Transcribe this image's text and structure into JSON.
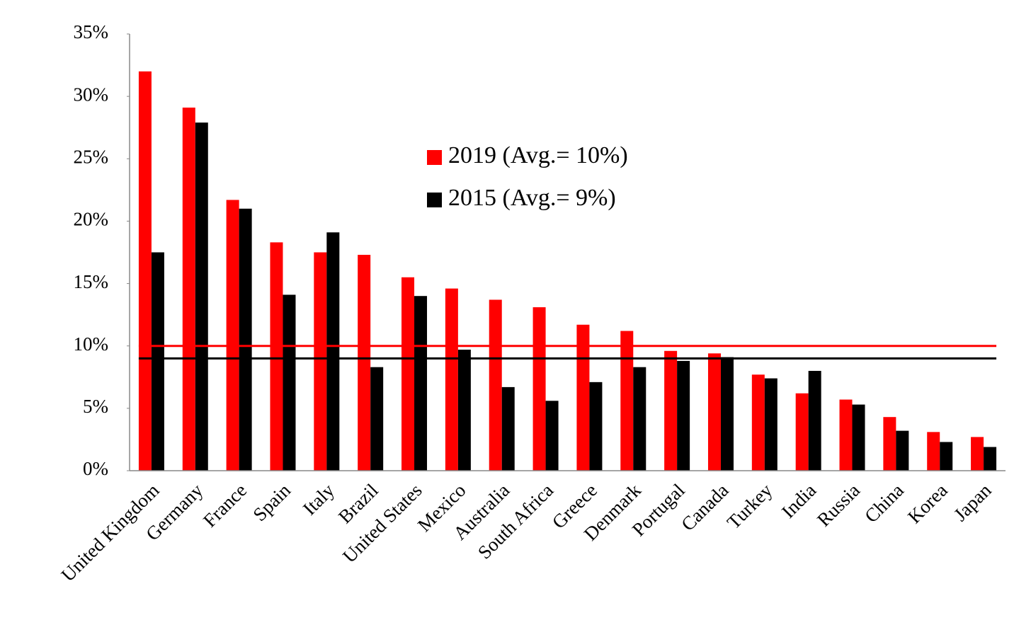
{
  "chart_data": {
    "type": "bar",
    "categories": [
      "United Kingdom",
      "Germany",
      "France",
      "Spain",
      "Italy",
      "Brazil",
      "United States",
      "Mexico",
      "Australia",
      "South Africa",
      "Greece",
      "Denmark",
      "Portugal",
      "Canada",
      "Turkey",
      "India",
      "Russia",
      "China",
      "Korea",
      "Japan"
    ],
    "series": [
      {
        "name": "2019 (Avg.= 10%)",
        "color": "#ff0000",
        "average": 10,
        "values": [
          32.0,
          29.1,
          21.7,
          18.3,
          17.5,
          17.3,
          15.5,
          14.6,
          13.7,
          13.1,
          11.7,
          11.2,
          9.6,
          9.4,
          7.7,
          6.2,
          5.7,
          4.3,
          3.1,
          2.7
        ]
      },
      {
        "name": "2015 (Avg.= 9%)",
        "color": "#000000",
        "average": 9,
        "values": [
          17.5,
          27.9,
          21.0,
          14.1,
          19.1,
          8.3,
          14.0,
          9.7,
          6.7,
          5.6,
          7.1,
          8.3,
          8.8,
          9.1,
          7.4,
          8.0,
          5.3,
          3.2,
          2.3,
          1.9
        ]
      }
    ],
    "ylim": [
      0,
      35
    ],
    "yticks": [
      {
        "value": 0,
        "label": "0%"
      },
      {
        "value": 5,
        "label": "5%"
      },
      {
        "value": 10,
        "label": "10%"
      },
      {
        "value": 15,
        "label": "15%"
      },
      {
        "value": 20,
        "label": "20%"
      },
      {
        "value": 25,
        "label": "25%"
      },
      {
        "value": 30,
        "label": "30%"
      },
      {
        "value": 35,
        "label": "35%"
      }
    ],
    "grid": false
  }
}
